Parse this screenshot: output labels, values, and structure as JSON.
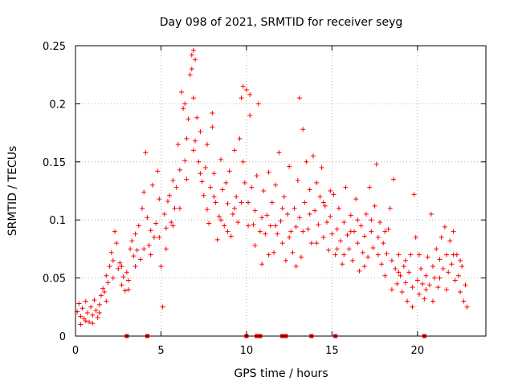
{
  "chart_data": {
    "type": "scatter",
    "title": "Day 098 of 2021, SRMTID for receiver seyg",
    "xlabel": "GPS time / hours",
    "ylabel": "SRMTID / TECUs",
    "xlim": [
      0,
      24
    ],
    "ylim": [
      0,
      0.25
    ],
    "xticks": [
      0,
      5,
      10,
      15,
      20
    ],
    "yticks": [
      0,
      0.05,
      0.1,
      0.15,
      0.2,
      0.25
    ],
    "xtick_labels": [
      "0",
      "5",
      "10",
      "15",
      "20"
    ],
    "ytick_labels": [
      "0",
      "0.05",
      "0.1",
      "0.15",
      "0.2",
      "0.25"
    ],
    "grid": true,
    "marker": "+",
    "series_color": "#ff0000",
    "x_range_of_points": [
      0,
      22.9
    ],
    "envelope_note": "Points roughly trace a daily profile: ~0.02 near 0 h, rising to ~0.15-0.25 near 6-7 h, ~0.1 through 10-18 h, declining to ~0.03-0.06 by 20-23 h.",
    "envelope": [
      {
        "x": 0.0,
        "y": 0.02
      },
      {
        "x": 1.0,
        "y": 0.022
      },
      {
        "x": 2.0,
        "y": 0.045
      },
      {
        "x": 3.0,
        "y": 0.06
      },
      {
        "x": 4.0,
        "y": 0.08
      },
      {
        "x": 5.0,
        "y": 0.1
      },
      {
        "x": 6.0,
        "y": 0.14
      },
      {
        "x": 7.0,
        "y": 0.15
      },
      {
        "x": 8.0,
        "y": 0.12
      },
      {
        "x": 9.0,
        "y": 0.11
      },
      {
        "x": 10.0,
        "y": 0.12
      },
      {
        "x": 11.0,
        "y": 0.1
      },
      {
        "x": 12.0,
        "y": 0.1
      },
      {
        "x": 13.0,
        "y": 0.1
      },
      {
        "x": 14.0,
        "y": 0.1
      },
      {
        "x": 15.0,
        "y": 0.09
      },
      {
        "x": 16.0,
        "y": 0.08
      },
      {
        "x": 17.0,
        "y": 0.08
      },
      {
        "x": 18.0,
        "y": 0.08
      },
      {
        "x": 19.0,
        "y": 0.05
      },
      {
        "x": 20.0,
        "y": 0.04
      },
      {
        "x": 21.0,
        "y": 0.05
      },
      {
        "x": 22.0,
        "y": 0.06
      },
      {
        "x": 22.9,
        "y": 0.035
      }
    ],
    "baseline_marks_x": [
      3.0,
      4.2,
      10.0,
      10.6,
      10.8,
      12.1,
      12.3,
      13.8,
      15.2,
      20.4
    ],
    "points": [
      [
        0.1,
        0.021
      ],
      [
        0.2,
        0.028
      ],
      [
        0.3,
        0.017
      ],
      [
        0.4,
        0.024
      ],
      [
        0.5,
        0.015
      ],
      [
        0.6,
        0.03
      ],
      [
        0.7,
        0.02
      ],
      [
        0.8,
        0.012
      ],
      [
        0.9,
        0.025
      ],
      [
        1.0,
        0.018
      ],
      [
        1.1,
        0.031
      ],
      [
        1.2,
        0.022
      ],
      [
        1.3,
        0.016
      ],
      [
        1.4,
        0.027
      ],
      [
        1.5,
        0.035
      ],
      [
        1.6,
        0.041
      ],
      [
        1.7,
        0.038
      ],
      [
        1.8,
        0.052
      ],
      [
        1.9,
        0.046
      ],
      [
        2.0,
        0.06
      ],
      [
        2.1,
        0.072
      ],
      [
        2.2,
        0.065
      ],
      [
        2.3,
        0.09
      ],
      [
        2.4,
        0.08
      ],
      [
        2.5,
        0.058
      ],
      [
        2.6,
        0.063
      ],
      [
        2.7,
        0.044
      ],
      [
        2.8,
        0.051
      ],
      [
        2.9,
        0.039
      ],
      [
        3.0,
        0.055
      ],
      [
        3.1,
        0.048
      ],
      [
        3.2,
        0.075
      ],
      [
        3.3,
        0.082
      ],
      [
        3.4,
        0.069
      ],
      [
        3.5,
        0.088
      ],
      [
        3.6,
        0.074
      ],
      [
        3.7,
        0.095
      ],
      [
        3.8,
        0.066
      ],
      [
        3.9,
        0.11
      ],
      [
        4.0,
        0.124
      ],
      [
        4.1,
        0.158
      ],
      [
        4.2,
        0.102
      ],
      [
        4.3,
        0.078
      ],
      [
        4.4,
        0.091
      ],
      [
        4.5,
        0.13
      ],
      [
        4.6,
        0.085
      ],
      [
        4.7,
        0.097
      ],
      [
        4.8,
        0.142
      ],
      [
        4.9,
        0.118
      ],
      [
        5.0,
        0.06
      ],
      [
        5.1,
        0.025
      ],
      [
        5.2,
        0.105
      ],
      [
        5.3,
        0.093
      ],
      [
        5.4,
        0.116
      ],
      [
        5.5,
        0.121
      ],
      [
        5.6,
        0.098
      ],
      [
        5.7,
        0.134
      ],
      [
        5.8,
        0.11
      ],
      [
        5.9,
        0.128
      ],
      [
        6.0,
        0.165
      ],
      [
        6.1,
        0.143
      ],
      [
        6.2,
        0.21
      ],
      [
        6.3,
        0.196
      ],
      [
        6.4,
        0.151
      ],
      [
        6.5,
        0.17
      ],
      [
        6.6,
        0.187
      ],
      [
        6.7,
        0.225
      ],
      [
        6.8,
        0.242
      ],
      [
        6.9,
        0.205
      ],
      [
        7.0,
        0.168
      ],
      [
        7.1,
        0.188
      ],
      [
        7.2,
        0.15
      ],
      [
        7.3,
        0.176
      ],
      [
        7.4,
        0.133
      ],
      [
        7.5,
        0.121
      ],
      [
        7.6,
        0.145
      ],
      [
        7.7,
        0.109
      ],
      [
        7.8,
        0.097
      ],
      [
        7.9,
        0.128
      ],
      [
        8.0,
        0.192
      ],
      [
        8.1,
        0.14
      ],
      [
        8.2,
        0.115
      ],
      [
        8.3,
        0.083
      ],
      [
        8.4,
        0.103
      ],
      [
        8.5,
        0.152
      ],
      [
        8.6,
        0.126
      ],
      [
        8.7,
        0.095
      ],
      [
        8.8,
        0.132
      ],
      [
        8.9,
        0.114
      ],
      [
        9.0,
        0.142
      ],
      [
        9.1,
        0.086
      ],
      [
        9.2,
        0.105
      ],
      [
        9.3,
        0.16
      ],
      [
        9.4,
        0.12
      ],
      [
        9.5,
        0.098
      ],
      [
        9.6,
        0.17
      ],
      [
        9.7,
        0.205
      ],
      [
        9.8,
        0.15
      ],
      [
        9.9,
        0.132
      ],
      [
        10.0,
        0.212
      ],
      [
        10.1,
        0.115
      ],
      [
        10.2,
        0.19
      ],
      [
        10.3,
        0.128
      ],
      [
        10.4,
        0.096
      ],
      [
        10.5,
        0.108
      ],
      [
        10.6,
        0.138
      ],
      [
        10.7,
        0.2
      ],
      [
        10.8,
        0.09
      ],
      [
        10.9,
        0.062
      ],
      [
        11.0,
        0.125
      ],
      [
        11.1,
        0.088
      ],
      [
        11.2,
        0.104
      ],
      [
        11.3,
        0.141
      ],
      [
        11.4,
        0.095
      ],
      [
        11.5,
        0.115
      ],
      [
        11.6,
        0.072
      ],
      [
        11.7,
        0.13
      ],
      [
        11.8,
        0.088
      ],
      [
        11.9,
        0.158
      ],
      [
        12.0,
        0.099
      ],
      [
        12.1,
        0.08
      ],
      [
        12.2,
        0.12
      ],
      [
        12.3,
        0.065
      ],
      [
        12.4,
        0.105
      ],
      [
        12.5,
        0.146
      ],
      [
        12.6,
        0.09
      ],
      [
        12.7,
        0.072
      ],
      [
        12.8,
        0.11
      ],
      [
        12.9,
        0.094
      ],
      [
        13.0,
        0.134
      ],
      [
        13.1,
        0.102
      ],
      [
        13.2,
        0.068
      ],
      [
        13.3,
        0.178
      ],
      [
        13.4,
        0.115
      ],
      [
        13.5,
        0.15
      ],
      [
        13.6,
        0.092
      ],
      [
        13.7,
        0.126
      ],
      [
        13.8,
        0.08
      ],
      [
        13.9,
        0.155
      ],
      [
        14.0,
        0.108
      ],
      [
        14.1,
        0.132
      ],
      [
        14.2,
        0.096
      ],
      [
        14.3,
        0.12
      ],
      [
        14.4,
        0.145
      ],
      [
        14.5,
        0.085
      ],
      [
        14.6,
        0.112
      ],
      [
        14.7,
        0.098
      ],
      [
        14.8,
        0.074
      ],
      [
        14.9,
        0.103
      ],
      [
        15.0,
        0.088
      ],
      [
        15.1,
        0.122
      ],
      [
        15.2,
        0.07
      ],
      [
        15.3,
        0.092
      ],
      [
        15.4,
        0.11
      ],
      [
        15.5,
        0.082
      ],
      [
        15.6,
        0.062
      ],
      [
        15.7,
        0.098
      ],
      [
        15.8,
        0.128
      ],
      [
        15.9,
        0.087
      ],
      [
        16.0,
        0.075
      ],
      [
        16.1,
        0.104
      ],
      [
        16.2,
        0.065
      ],
      [
        16.3,
        0.09
      ],
      [
        16.4,
        0.118
      ],
      [
        16.5,
        0.08
      ],
      [
        16.6,
        0.056
      ],
      [
        16.7,
        0.095
      ],
      [
        16.8,
        0.072
      ],
      [
        16.9,
        0.086
      ],
      [
        17.0,
        0.105
      ],
      [
        17.1,
        0.068
      ],
      [
        17.2,
        0.128
      ],
      [
        17.3,
        0.09
      ],
      [
        17.4,
        0.076
      ],
      [
        17.5,
        0.112
      ],
      [
        17.6,
        0.148
      ],
      [
        17.7,
        0.085
      ],
      [
        17.8,
        0.098
      ],
      [
        17.9,
        0.062
      ],
      [
        18.0,
        0.08
      ],
      [
        18.1,
        0.052
      ],
      [
        18.2,
        0.071
      ],
      [
        18.3,
        0.092
      ],
      [
        18.4,
        0.11
      ],
      [
        18.5,
        0.065
      ],
      [
        18.6,
        0.135
      ],
      [
        18.7,
        0.058
      ],
      [
        18.8,
        0.045
      ],
      [
        18.9,
        0.07
      ],
      [
        19.0,
        0.052
      ],
      [
        19.1,
        0.038
      ],
      [
        19.2,
        0.06
      ],
      [
        19.3,
        0.046
      ],
      [
        19.4,
        0.03
      ],
      [
        19.5,
        0.055
      ],
      [
        19.6,
        0.07
      ],
      [
        19.7,
        0.042
      ],
      [
        19.8,
        0.122
      ],
      [
        19.9,
        0.085
      ],
      [
        20.0,
        0.048
      ],
      [
        20.1,
        0.036
      ],
      [
        20.2,
        0.058
      ],
      [
        20.3,
        0.045
      ],
      [
        20.4,
        0.032
      ],
      [
        20.5,
        0.052
      ],
      [
        20.6,
        0.068
      ],
      [
        20.7,
        0.044
      ],
      [
        20.8,
        0.105
      ],
      [
        20.9,
        0.06
      ],
      [
        21.0,
        0.05
      ],
      [
        21.1,
        0.075
      ],
      [
        21.2,
        0.042
      ],
      [
        21.3,
        0.066
      ],
      [
        21.4,
        0.085
      ],
      [
        21.5,
        0.058
      ],
      [
        21.6,
        0.094
      ],
      [
        21.7,
        0.07
      ],
      [
        21.8,
        0.055
      ],
      [
        21.9,
        0.082
      ],
      [
        22.0,
        0.062
      ],
      [
        22.1,
        0.09
      ],
      [
        22.2,
        0.048
      ],
      [
        22.3,
        0.07
      ],
      [
        22.4,
        0.052
      ],
      [
        22.5,
        0.038
      ],
      [
        22.6,
        0.06
      ],
      [
        22.7,
        0.03
      ],
      [
        22.8,
        0.044
      ],
      [
        22.9,
        0.025
      ],
      [
        0.3,
        0.01
      ],
      [
        0.6,
        0.013
      ],
      [
        1.0,
        0.011
      ],
      [
        1.4,
        0.02
      ],
      [
        1.8,
        0.03
      ],
      [
        2.2,
        0.05
      ],
      [
        2.7,
        0.06
      ],
      [
        3.1,
        0.04
      ],
      [
        3.5,
        0.06
      ],
      [
        4.0,
        0.075
      ],
      [
        4.4,
        0.07
      ],
      [
        4.9,
        0.085
      ],
      [
        5.3,
        0.075
      ],
      [
        5.7,
        0.095
      ],
      [
        6.1,
        0.11
      ],
      [
        6.5,
        0.135
      ],
      [
        6.9,
        0.16
      ],
      [
        7.3,
        0.14
      ],
      [
        7.7,
        0.165
      ],
      [
        8.1,
        0.12
      ],
      [
        8.5,
        0.1
      ],
      [
        8.9,
        0.09
      ],
      [
        9.3,
        0.11
      ],
      [
        9.7,
        0.115
      ],
      [
        10.1,
        0.095
      ],
      [
        10.5,
        0.078
      ],
      [
        10.9,
        0.102
      ],
      [
        11.3,
        0.07
      ],
      [
        11.7,
        0.095
      ],
      [
        12.1,
        0.11
      ],
      [
        12.5,
        0.085
      ],
      [
        12.9,
        0.06
      ],
      [
        13.3,
        0.09
      ],
      [
        13.7,
        0.105
      ],
      [
        14.1,
        0.08
      ],
      [
        14.5,
        0.115
      ],
      [
        14.9,
        0.125
      ],
      [
        15.3,
        0.075
      ],
      [
        15.7,
        0.07
      ],
      [
        16.1,
        0.09
      ],
      [
        16.5,
        0.1
      ],
      [
        16.9,
        0.06
      ],
      [
        17.3,
        0.1
      ],
      [
        17.7,
        0.07
      ],
      [
        18.1,
        0.09
      ],
      [
        18.5,
        0.04
      ],
      [
        18.9,
        0.055
      ],
      [
        19.3,
        0.065
      ],
      [
        19.7,
        0.025
      ],
      [
        20.1,
        0.07
      ],
      [
        20.5,
        0.04
      ],
      [
        20.9,
        0.03
      ],
      [
        21.3,
        0.05
      ],
      [
        21.7,
        0.04
      ],
      [
        22.1,
        0.07
      ],
      [
        22.5,
        0.065
      ],
      [
        6.8,
        0.23
      ],
      [
        6.9,
        0.246
      ],
      [
        7.0,
        0.238
      ],
      [
        6.4,
        0.2
      ],
      [
        9.8,
        0.215
      ],
      [
        10.2,
        0.208
      ],
      [
        13.1,
        0.205
      ],
      [
        8.0,
        0.18
      ]
    ]
  }
}
